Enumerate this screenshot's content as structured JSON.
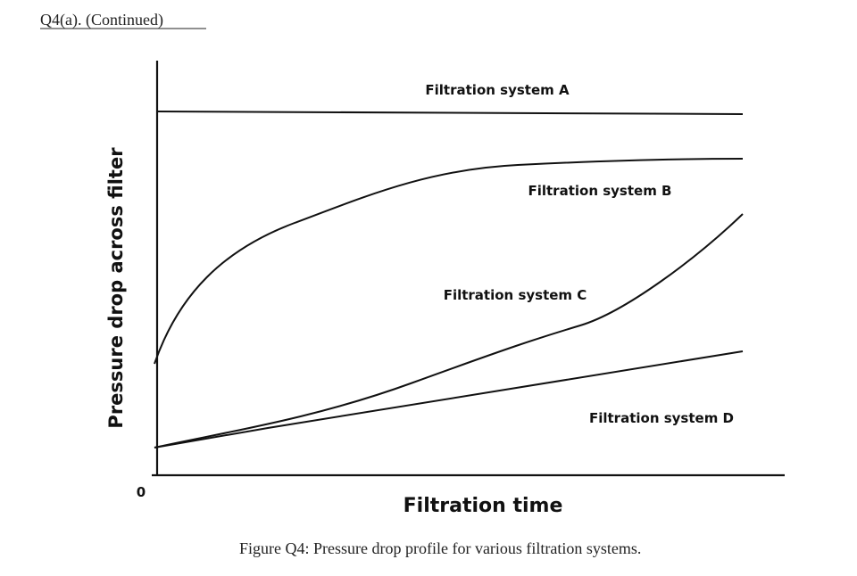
{
  "header": {
    "title": "Q4(a). (Continued)"
  },
  "figure": {
    "y_axis_label": "Pressure drop across filter",
    "x_axis_label": "Filtration time",
    "origin_label": "0",
    "curves": [
      {
        "label": "Filtration system A"
      },
      {
        "label": "Filtration system B"
      },
      {
        "label": "Filtration system C"
      },
      {
        "label": "Filtration system D"
      }
    ],
    "caption": "Figure Q4: Pressure drop profile for various filtration systems."
  }
}
